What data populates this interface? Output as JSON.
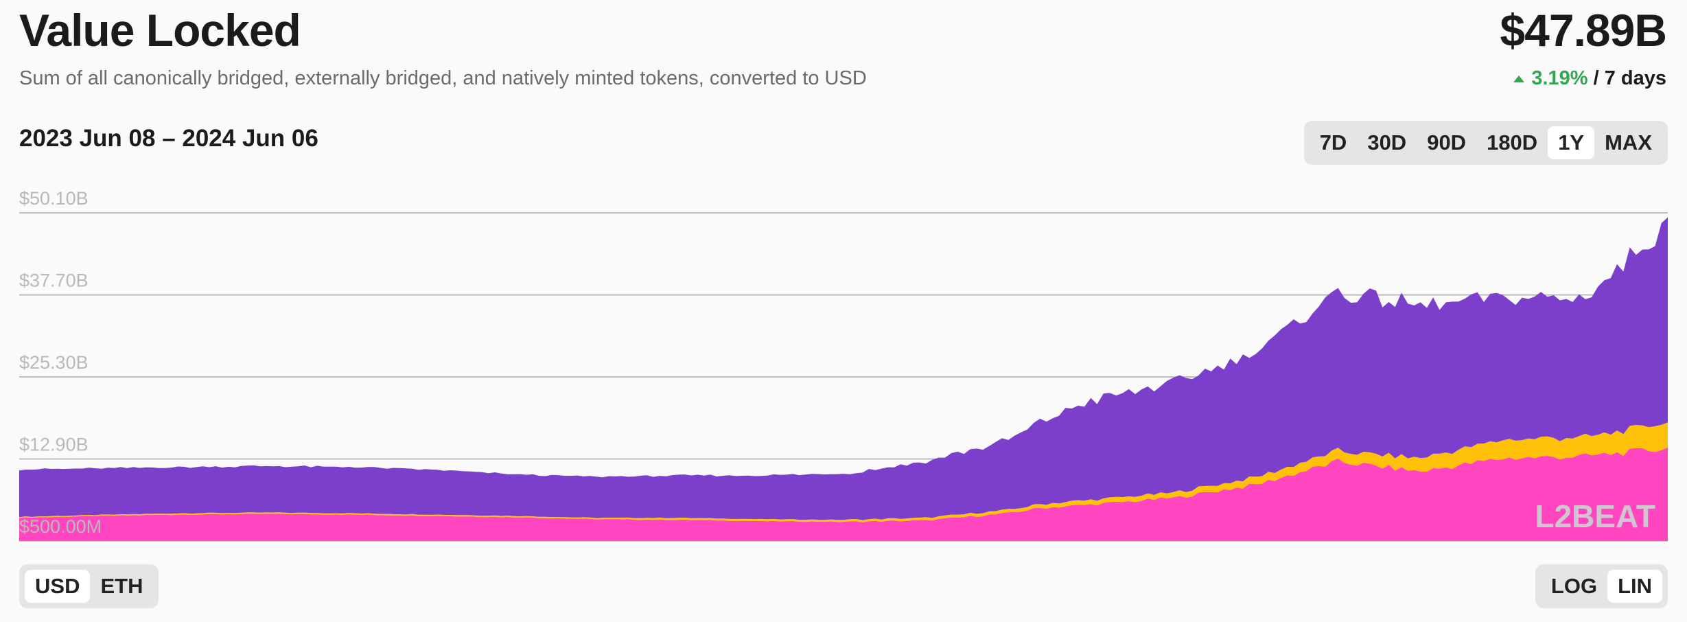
{
  "header": {
    "title": "Value Locked",
    "subtitle": "Sum of all canonically bridged, externally bridged, and natively minted tokens, converted to USD",
    "total": "$47.89B",
    "change_pct": "3.19%",
    "change_period": "/ 7 days"
  },
  "date_range": "2023 Jun 08 – 2024 Jun 06",
  "time_ranges": [
    "7D",
    "30D",
    "90D",
    "180D",
    "1Y",
    "MAX"
  ],
  "time_range_selected": "1Y",
  "currencies": [
    "USD",
    "ETH"
  ],
  "currency_selected": "USD",
  "scales": [
    "LOG",
    "LIN"
  ],
  "scale_selected": "LIN",
  "watermark": "L2BEAT",
  "colors": {
    "canonical": "#7b3fcb",
    "external": "#ffc107",
    "native": "#ff46c0",
    "positive": "#2fa84f"
  },
  "chart_data": {
    "type": "area",
    "stacked": true,
    "x_range": [
      "2023 Jun 08",
      "2024 Jun 06"
    ],
    "y_ticks": [
      "$500.00M",
      "$12.90B",
      "$25.30B",
      "$37.70B",
      "$50.10B"
    ],
    "y_tick_values": [
      0.5,
      12.9,
      25.3,
      37.7,
      50.1
    ],
    "ylim": [
      0.5,
      50.1
    ],
    "grid": true,
    "x": [
      0,
      0.05,
      0.1,
      0.15,
      0.2,
      0.25,
      0.3,
      0.35,
      0.4,
      0.45,
      0.5,
      0.55,
      0.6,
      0.62,
      0.65,
      0.7,
      0.75,
      0.8,
      0.85,
      0.9,
      0.95,
      1.0
    ],
    "series": [
      {
        "key": "native",
        "values": [
          3.5,
          3.8,
          4.0,
          4.1,
          4.0,
          3.8,
          3.6,
          3.3,
          3.2,
          3.0,
          2.9,
          3.1,
          4.2,
          5.0,
          5.5,
          6.5,
          8.5,
          12.0,
          10.5,
          12.5,
          12.8,
          14.0
        ]
      },
      {
        "key": "external",
        "values": [
          0.15,
          0.15,
          0.2,
          0.2,
          0.2,
          0.2,
          0.2,
          0.2,
          0.3,
          0.3,
          0.3,
          0.4,
          0.5,
          0.6,
          0.7,
          0.8,
          1.1,
          1.6,
          2.0,
          2.8,
          2.9,
          3.9
        ]
      },
      {
        "key": "canonical",
        "values": [
          7.2,
          7.0,
          7.0,
          7.0,
          7.0,
          6.8,
          6.3,
          6.2,
          6.4,
          6.6,
          7.0,
          8.5,
          10.5,
          12.5,
          15.0,
          16.5,
          19.0,
          24.0,
          23.0,
          21.5,
          21.0,
          30.0
        ]
      }
    ]
  }
}
